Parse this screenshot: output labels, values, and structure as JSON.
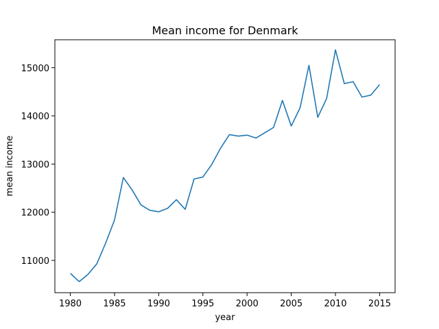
{
  "chart_data": {
    "type": "line",
    "title": "Mean income for Denmark",
    "xlabel": "year",
    "ylabel": "mean income",
    "xlim": [
      1978.25,
      2016.75
    ],
    "ylim": [
      10330,
      15580
    ],
    "xticks": [
      1980,
      1985,
      1990,
      1995,
      2000,
      2005,
      2010,
      2015
    ],
    "yticks": [
      11000,
      12000,
      13000,
      14000,
      15000
    ],
    "grid": false,
    "line_color": "#1f77b4",
    "series": [
      {
        "x": [
          1980,
          1981,
          1982,
          1983,
          1984,
          1985,
          1986,
          1987,
          1988,
          1989,
          1990,
          1991,
          1992,
          1993,
          1994,
          1995,
          1996,
          1997,
          1998,
          1999,
          2000,
          2001,
          2002,
          2003,
          2004,
          2005,
          2006,
          2007,
          2008,
          2009,
          2010,
          2011,
          2012,
          2013,
          2014,
          2015
        ],
        "values": [
          10730,
          10560,
          10710,
          10930,
          11360,
          11840,
          12720,
          12460,
          12150,
          12040,
          12010,
          12080,
          12260,
          12060,
          12690,
          12730,
          12990,
          13330,
          13610,
          13580,
          13600,
          13540,
          13650,
          13760,
          14320,
          13790,
          14170,
          15050,
          13970,
          14360,
          15370,
          14670,
          14710,
          14390,
          14430,
          14650
        ]
      }
    ]
  }
}
